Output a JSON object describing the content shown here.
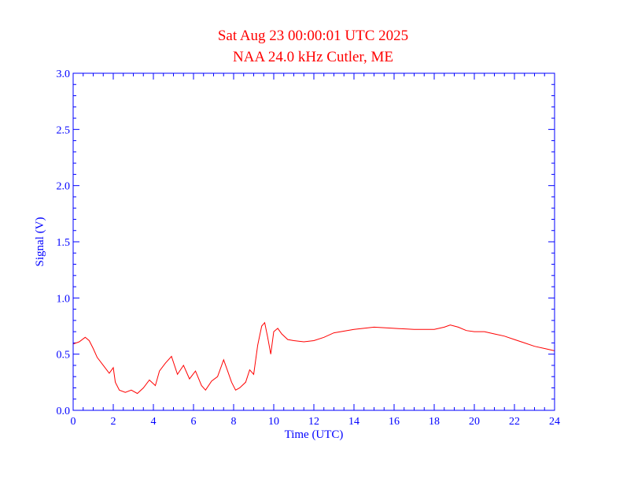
{
  "chart_data": {
    "type": "line",
    "title": "Sat Aug 23 00:00:01 UTC 2025",
    "subtitle": "NAA 24.0 kHz Cutler, ME",
    "xlabel": "Time (UTC)",
    "ylabel": "Signal (V)",
    "xlim": [
      0,
      24
    ],
    "ylim": [
      0,
      3
    ],
    "xticks": [
      0,
      2,
      4,
      6,
      8,
      10,
      12,
      14,
      16,
      18,
      20,
      22,
      24
    ],
    "yticks": [
      "0.0",
      "0.5",
      "1.0",
      "1.5",
      "2.0",
      "2.5",
      "3.0"
    ],
    "grid": false,
    "colors": {
      "title": "#ff0000",
      "axes": "#0000ff",
      "series": "#ff0000"
    },
    "series": [
      {
        "x": [
          0,
          0.3,
          0.6,
          0.8,
          1.0,
          1.2,
          1.5,
          1.8,
          2.0,
          2.1,
          2.3,
          2.6,
          2.9,
          3.2,
          3.5,
          3.8,
          4.1,
          4.3,
          4.6,
          4.9,
          5.2,
          5.5,
          5.8,
          6.1,
          6.4,
          6.6,
          6.9,
          7.2,
          7.5,
          7.7,
          7.9,
          8.1,
          8.3,
          8.6,
          8.8,
          9.0,
          9.2,
          9.4,
          9.55,
          9.7,
          9.85,
          10.0,
          10.2,
          10.4,
          10.7,
          11.0,
          11.5,
          12.0,
          12.5,
          13.0,
          14.0,
          15.0,
          16.0,
          17.0,
          18.0,
          18.5,
          18.8,
          19.2,
          19.6,
          20.0,
          20.5,
          21.0,
          21.5,
          22.0,
          22.5,
          23.0,
          23.5,
          24.0
        ],
        "y": [
          0.59,
          0.61,
          0.65,
          0.62,
          0.55,
          0.47,
          0.4,
          0.33,
          0.38,
          0.25,
          0.18,
          0.16,
          0.18,
          0.15,
          0.2,
          0.27,
          0.22,
          0.35,
          0.42,
          0.48,
          0.32,
          0.4,
          0.28,
          0.35,
          0.22,
          0.18,
          0.26,
          0.3,
          0.45,
          0.35,
          0.25,
          0.18,
          0.2,
          0.25,
          0.36,
          0.32,
          0.58,
          0.75,
          0.78,
          0.65,
          0.5,
          0.7,
          0.73,
          0.68,
          0.63,
          0.62,
          0.61,
          0.62,
          0.65,
          0.69,
          0.72,
          0.74,
          0.73,
          0.72,
          0.72,
          0.74,
          0.76,
          0.74,
          0.71,
          0.7,
          0.7,
          0.68,
          0.66,
          0.63,
          0.6,
          0.57,
          0.55,
          0.53
        ]
      }
    ]
  }
}
